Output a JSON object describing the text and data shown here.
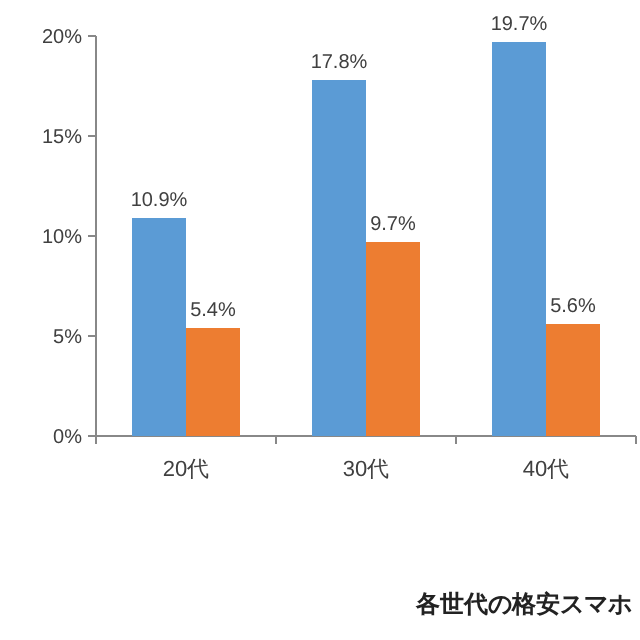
{
  "chart_data": {
    "type": "bar",
    "title": "各世代の格安スマホ",
    "categories": [
      "20代",
      "30代",
      "40代"
    ],
    "series": [
      {
        "color": "#5b9bd5",
        "values": [
          10.9,
          17.8,
          19.7
        ],
        "value_labels": [
          "10.9%",
          "17.8%",
          "19.7%"
        ]
      },
      {
        "color": "#ed7d31",
        "values": [
          5.4,
          9.7,
          5.6
        ],
        "value_labels": [
          "5.4%",
          "9.7%",
          "5.6%"
        ]
      }
    ],
    "ylim": [
      0,
      20
    ],
    "yticks": [
      {
        "value": 0,
        "label": "0%"
      },
      {
        "value": 5,
        "label": "5%"
      },
      {
        "value": 10,
        "label": "10%"
      },
      {
        "value": 15,
        "label": "15%"
      },
      {
        "value": 20,
        "label": "20%"
      }
    ],
    "grid": false
  }
}
